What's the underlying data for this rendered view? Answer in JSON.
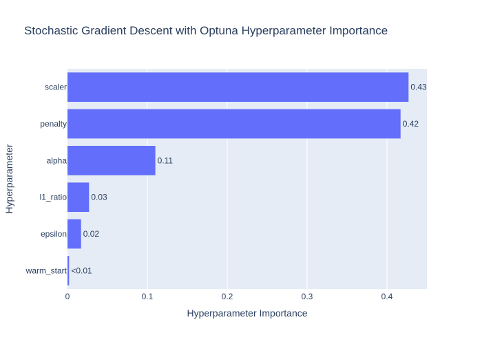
{
  "chart_data": {
    "type": "bar",
    "orientation": "horizontal",
    "title": "Stochastic Gradient Descent with Optuna Hyperparameter Importance",
    "xlabel": "Hyperparameter Importance",
    "ylabel": "Hyperparameter",
    "xlim": [
      0,
      0.45
    ],
    "x_ticks": [
      "0",
      "0.1",
      "0.2",
      "0.3",
      "0.4"
    ],
    "categories": [
      "scaler",
      "penalty",
      "alpha",
      "l1_ratio",
      "epsilon",
      "warm_start"
    ],
    "values": [
      0.427,
      0.417,
      0.11,
      0.027,
      0.017,
      0.002
    ],
    "value_labels": [
      "0.43",
      "0.42",
      "0.11",
      "0.03",
      "0.02",
      "<0.01"
    ],
    "grid": true,
    "bar_color": "#636efa",
    "plot_bg": "#e5ecf6"
  }
}
